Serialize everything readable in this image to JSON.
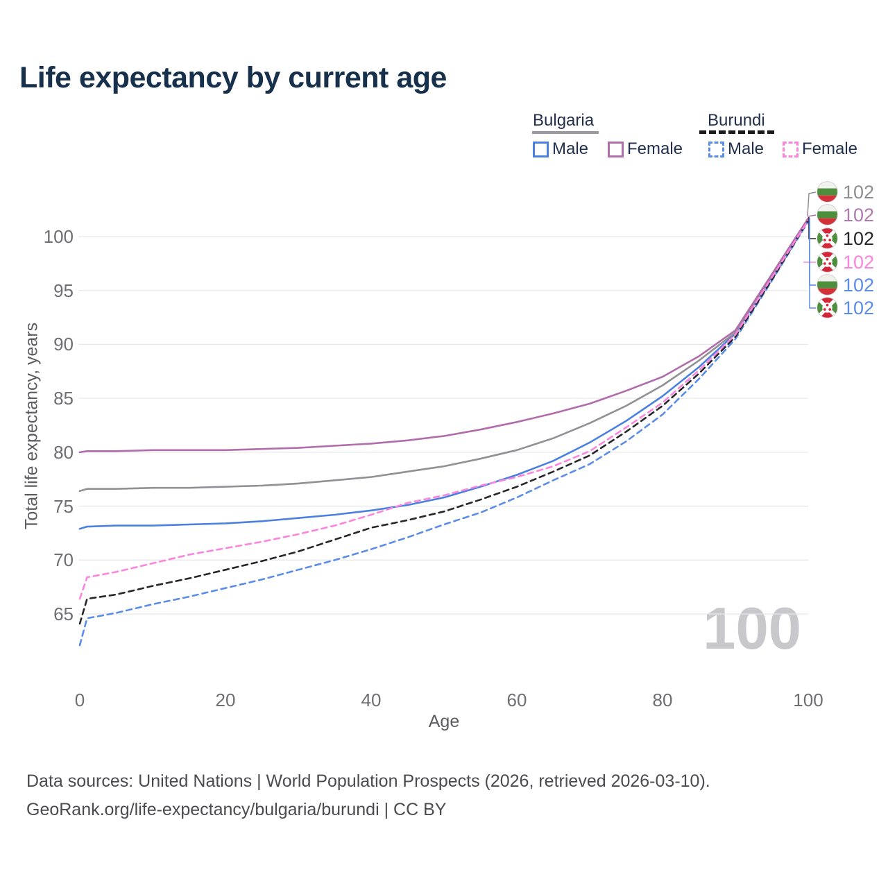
{
  "title": "Life expectancy by current age",
  "watermark": "100",
  "legend": {
    "groups": [
      {
        "label": "Bulgaria",
        "line_style": "solid",
        "underline_color": "#9a9aa0",
        "items": [
          {
            "label": "Male",
            "color": "#4a80e0",
            "dashed": false
          },
          {
            "label": "Female",
            "color": "#b06cab",
            "dashed": false
          }
        ]
      },
      {
        "label": "Burundi",
        "line_style": "dashed",
        "underline_color": "#1a1a1a",
        "items": [
          {
            "label": "Male",
            "color": "#5b8ce8",
            "dashed": true
          },
          {
            "label": "Female",
            "color": "#fb84dd",
            "dashed": true
          }
        ]
      }
    ]
  },
  "chart_data": {
    "type": "line",
    "title": "Life expectancy by current age",
    "xlabel": "Age",
    "ylabel": "Total life expectancy, years",
    "x_ticks": [
      0,
      20,
      40,
      60,
      80,
      100
    ],
    "y_ticks": [
      65,
      70,
      75,
      80,
      85,
      90,
      95,
      100
    ],
    "xlim": [
      0,
      100
    ],
    "ylim": [
      61.5,
      102.5
    ],
    "grid": "horizontal",
    "gridline_color": "#e8e8eb",
    "x": [
      0,
      1,
      5,
      10,
      15,
      20,
      25,
      30,
      35,
      40,
      45,
      50,
      55,
      60,
      65,
      70,
      75,
      80,
      85,
      90,
      95,
      100
    ],
    "series": [
      {
        "id": "bulgaria_female",
        "name": "Bulgaria Female",
        "country": "Bulgaria",
        "sex": "Female",
        "color": "#b06cab",
        "dashed": false,
        "values": [
          80.0,
          80.1,
          80.1,
          80.2,
          80.2,
          80.2,
          80.3,
          80.4,
          80.6,
          80.8,
          81.1,
          81.5,
          82.1,
          82.8,
          83.6,
          84.5,
          85.7,
          87.0,
          88.9,
          91.3,
          96.5,
          101.7
        ]
      },
      {
        "id": "bulgaria_total",
        "name": "Bulgaria Total",
        "country": "Bulgaria",
        "sex": "Total",
        "color": "#909095",
        "dashed": false,
        "values": [
          76.4,
          76.6,
          76.6,
          76.7,
          76.7,
          76.8,
          76.9,
          77.1,
          77.4,
          77.7,
          78.2,
          78.7,
          79.4,
          80.2,
          81.3,
          82.7,
          84.3,
          86.2,
          88.5,
          91.1,
          96.4,
          101.6
        ]
      },
      {
        "id": "bulgaria_male",
        "name": "Bulgaria Male",
        "country": "Bulgaria",
        "sex": "Male",
        "color": "#4a80e0",
        "dashed": false,
        "values": [
          72.9,
          73.1,
          73.2,
          73.2,
          73.3,
          73.4,
          73.6,
          73.9,
          74.2,
          74.6,
          75.1,
          75.8,
          76.8,
          77.9,
          79.2,
          80.9,
          82.9,
          85.2,
          87.9,
          91.0,
          96.3,
          101.6
        ]
      },
      {
        "id": "burundi_female",
        "name": "Burundi Female",
        "country": "Burundi",
        "sex": "Female",
        "color": "#fb84dd",
        "dashed": true,
        "values": [
          66.4,
          68.4,
          68.9,
          69.7,
          70.5,
          71.1,
          71.7,
          72.4,
          73.2,
          74.2,
          75.3,
          76.0,
          76.9,
          77.7,
          78.7,
          80.1,
          82.3,
          84.6,
          87.6,
          90.9,
          96.2,
          101.5
        ]
      },
      {
        "id": "burundi_total",
        "name": "Burundi Total",
        "country": "Burundi",
        "sex": "Total",
        "color": "#26262b",
        "dashed": true,
        "values": [
          64.1,
          66.4,
          66.8,
          67.6,
          68.3,
          69.1,
          69.9,
          70.8,
          71.9,
          73.0,
          73.7,
          74.5,
          75.6,
          76.8,
          78.2,
          79.7,
          81.9,
          84.3,
          87.3,
          90.7,
          96.0,
          101.5
        ]
      },
      {
        "id": "burundi_male",
        "name": "Burundi Male",
        "country": "Burundi",
        "sex": "Male",
        "color": "#5b8ce8",
        "dashed": true,
        "values": [
          62.1,
          64.6,
          65.1,
          65.9,
          66.6,
          67.4,
          68.2,
          69.1,
          70.0,
          71.0,
          72.1,
          73.3,
          74.4,
          75.8,
          77.4,
          78.9,
          81.0,
          83.5,
          86.8,
          90.5,
          95.9,
          101.4
        ]
      }
    ],
    "end_labels": [
      {
        "series": "bulgaria_total",
        "flag": "bulgaria",
        "value": "102",
        "color": "#8e8e93"
      },
      {
        "series": "bulgaria_female",
        "flag": "bulgaria",
        "value": "102",
        "color": "#b07ab0"
      },
      {
        "series": "burundi_total",
        "flag": "burundi",
        "value": "102",
        "color": "#26262b"
      },
      {
        "series": "burundi_female",
        "flag": "burundi",
        "value": "102",
        "color": "#fb84dd"
      },
      {
        "series": "bulgaria_male",
        "flag": "bulgaria",
        "value": "102",
        "color": "#5b8ce8"
      },
      {
        "series": "burundi_male",
        "flag": "burundi",
        "value": "102",
        "color": "#5b8ce8"
      }
    ]
  },
  "footer": {
    "line1": "Data sources: United Nations | World Population Prospects (2026, retrieved 2026-03-10).",
    "line2": "GeoRank.org/life-expectancy/bulgaria/burundi | CC BY"
  }
}
